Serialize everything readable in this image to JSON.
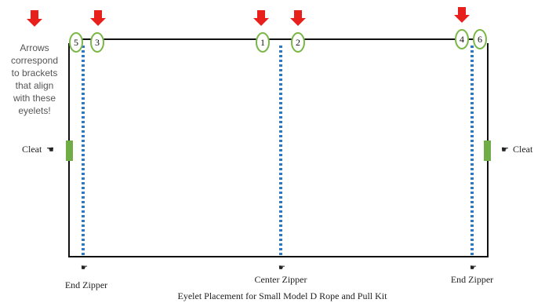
{
  "note": [
    "Arrows",
    "correspond",
    "to brackets",
    "that align",
    "with these",
    "eyelets!"
  ],
  "eyelets": [
    "5",
    "3",
    "1",
    "2",
    "4",
    "6"
  ],
  "cleats": {
    "left": "Cleat",
    "right": "Cleat"
  },
  "zippers": {
    "left": "End Zipper",
    "center": "Center Zipper",
    "right": "End Zipper"
  },
  "caption": "Eyelet Placement for Small Model D Rope and Pull Kit",
  "colors": {
    "arrow": "#e8201b",
    "eyelet_ring": "#7ab648",
    "zipper_line": "#2f78c2",
    "cleat": "#70ad47",
    "frame": "#111111"
  }
}
